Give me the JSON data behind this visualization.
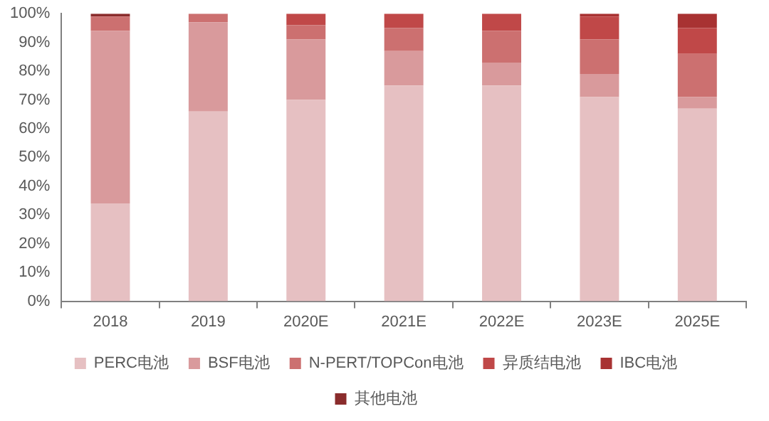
{
  "chart_data": {
    "type": "bar",
    "stacked": true,
    "categories": [
      "2018",
      "2019",
      "2020E",
      "2021E",
      "2022E",
      "2023E",
      "2025E"
    ],
    "series": [
      {
        "name": "PERC电池",
        "color": "#e6c0c2",
        "values": [
          34,
          66,
          70,
          75,
          75,
          71,
          67
        ]
      },
      {
        "name": "BSF电池",
        "color": "#d99a9c",
        "values": [
          60,
          31,
          21,
          12,
          8,
          8,
          4
        ]
      },
      {
        "name": "N-PERT/TOPCon电池",
        "color": "#cc7070",
        "values": [
          5,
          3,
          5,
          8,
          11,
          12,
          15
        ]
      },
      {
        "name": "异质结电池",
        "color": "#c04848",
        "values": [
          0,
          0,
          4,
          5,
          6,
          8,
          9
        ]
      },
      {
        "name": "IBC电池",
        "color": "#a83232",
        "values": [
          0,
          0,
          0,
          0,
          0,
          1,
          5
        ]
      },
      {
        "name": "其他电池",
        "color": "#8a2c2c",
        "values": [
          1,
          0,
          0,
          0,
          0,
          0,
          0
        ]
      }
    ],
    "ylim": [
      0,
      100
    ],
    "yticks": [
      {
        "value": 0,
        "label": "0%"
      },
      {
        "value": 10,
        "label": "10%"
      },
      {
        "value": 20,
        "label": "20%"
      },
      {
        "value": 30,
        "label": "30%"
      },
      {
        "value": 40,
        "label": "40%"
      },
      {
        "value": 50,
        "label": "50%"
      },
      {
        "value": 60,
        "label": "60%"
      },
      {
        "value": 70,
        "label": "70%"
      },
      {
        "value": 80,
        "label": "80%"
      },
      {
        "value": 90,
        "label": "90%"
      },
      {
        "value": 100,
        "label": "100%"
      }
    ],
    "grid": false,
    "legend": "bottom"
  }
}
